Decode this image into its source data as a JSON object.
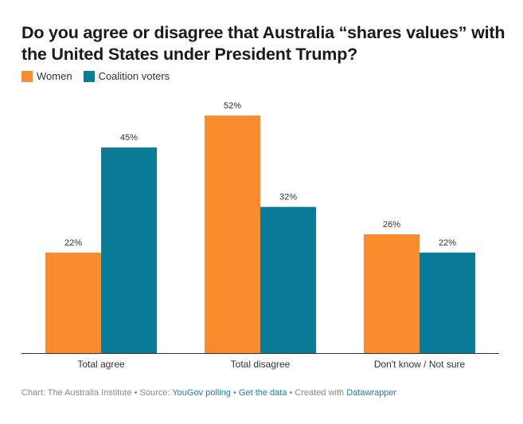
{
  "title": "Do you agree or disagree that Australia “shares values” with the United States under President Trump?",
  "colors": {
    "women": "#fa8c2e",
    "coalition": "#0a7c99",
    "axis": "#333333"
  },
  "legend": [
    {
      "label": "Women",
      "color": "#fa8c2e"
    },
    {
      "label": "Coalition voters",
      "color": "#0a7c99"
    }
  ],
  "chart_data": {
    "type": "bar",
    "title": "Do you agree or disagree that Australia “shares values” with the United States under President Trump?",
    "categories": [
      "Total agree",
      "Total disagree",
      "Don't know / Not sure"
    ],
    "series": [
      {
        "name": "Women",
        "values": [
          22,
          52,
          26
        ],
        "labels": [
          "22%",
          "52%",
          "26%"
        ],
        "color": "#fa8c2e"
      },
      {
        "name": "Coalition voters",
        "values": [
          45,
          32,
          22
        ],
        "labels": [
          "45%",
          "32%",
          "22%"
        ],
        "color": "#0a7c99"
      }
    ],
    "ylim": [
      0,
      52
    ],
    "legend_position": "top-left",
    "grid": false
  },
  "footer": {
    "prefix": "Chart: The Australia Institute • Source: ",
    "source_link": "YouGov polling",
    "sep1": " • ",
    "data_link": "Get the data",
    "sep2": " • Created with ",
    "tool_link": "Datawrapper"
  }
}
